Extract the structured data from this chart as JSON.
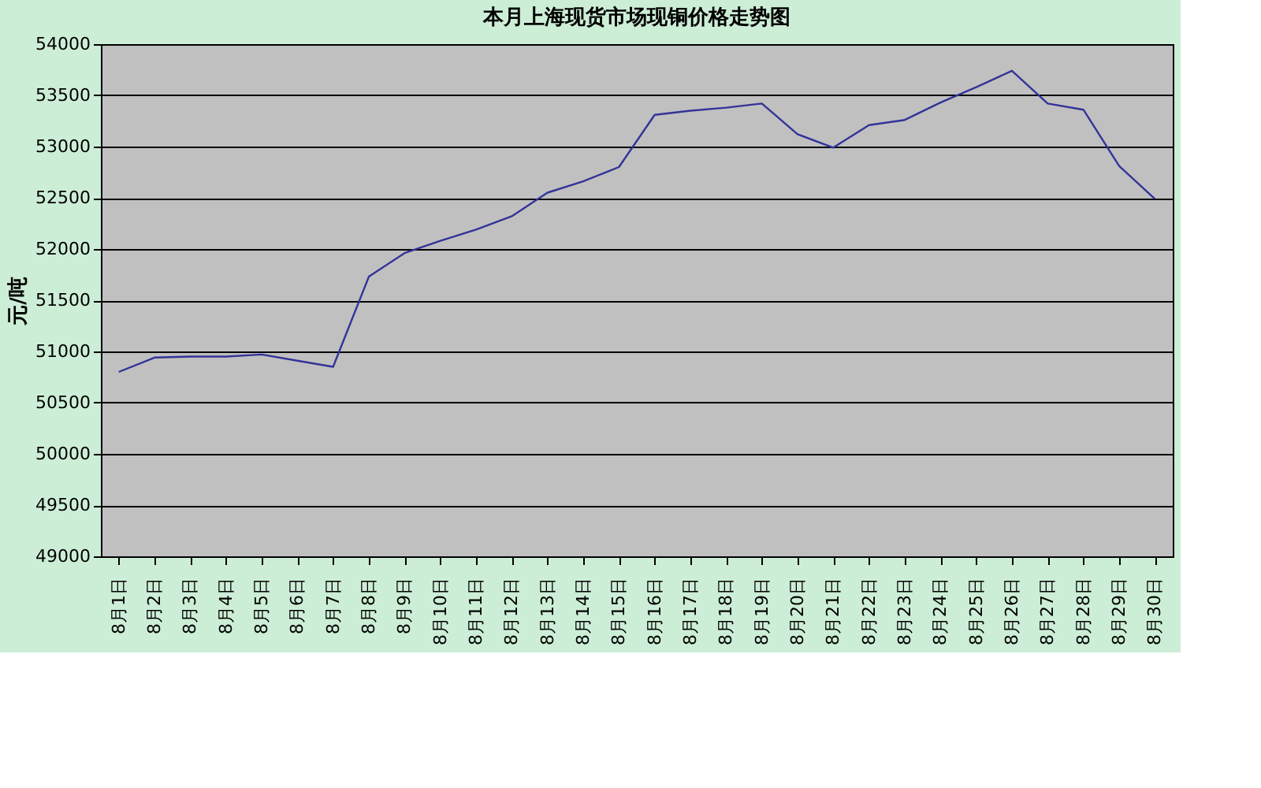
{
  "chart_data": {
    "type": "line",
    "title": "本月上海现货市场现铜价格走势图",
    "ylabel": "元/吨",
    "categories": [
      "8月1日",
      "8月2日",
      "8月3日",
      "8月4日",
      "8月5日",
      "8月6日",
      "8月7日",
      "8月8日",
      "8月9日",
      "8月10日",
      "8月11日",
      "8月12日",
      "8月13日",
      "8月14日",
      "8月15日",
      "8月16日",
      "8月17日",
      "8月18日",
      "8月19日",
      "8月20日",
      "8月21日",
      "8月22日",
      "8月23日",
      "8月24日",
      "8月25日",
      "8月26日",
      "8月27日",
      "8月28日",
      "8月29日",
      "8月30日"
    ],
    "series": [
      {
        "color": "#333399",
        "values": [
          50800,
          50940,
          50950,
          50950,
          50970,
          50910,
          50850,
          51730,
          51960,
          52080,
          52190,
          52320,
          52550,
          52660,
          52800,
          53310,
          53350,
          53380,
          53420,
          53120,
          52990,
          53210,
          53260,
          53430,
          53580,
          53740,
          53420,
          53360,
          52810,
          52490
        ]
      }
    ],
    "ylim": [
      49000,
      54000
    ],
    "yticks": [
      49000,
      49500,
      50000,
      50500,
      51000,
      51500,
      52000,
      52500,
      53000,
      53500,
      54000
    ],
    "grid": "y",
    "marker": "none",
    "line_style": "solid"
  }
}
